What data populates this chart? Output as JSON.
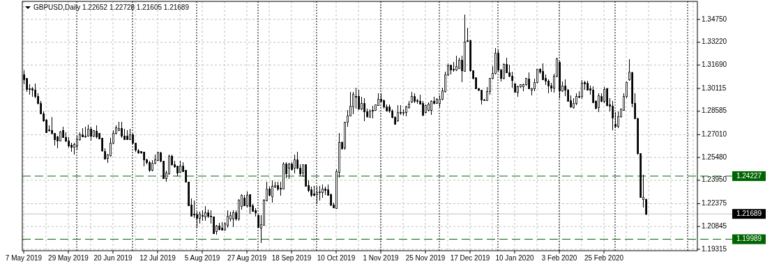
{
  "chart_data": {
    "type": "candlestick",
    "title": "GBPUSD,Daily  1.22652 1.22728 1.21605 1.21689",
    "color": "#000000",
    "grid": true,
    "categories": [
      "7 May 2019",
      null,
      null,
      null,
      null,
      null,
      null,
      null,
      null,
      null,
      null,
      null,
      null,
      null,
      null,
      null,
      "29 May 2019",
      null,
      null,
      null,
      null,
      null,
      null,
      null,
      null,
      null,
      null,
      null,
      null,
      null,
      null,
      null,
      "20 Jun 2019",
      null,
      null,
      null,
      null,
      null,
      null,
      null,
      null,
      null,
      null,
      null,
      null,
      null,
      null,
      null,
      "12 Jul 2019",
      null,
      null,
      null,
      null,
      null,
      null,
      null,
      null,
      null,
      null,
      null,
      null,
      null,
      null,
      null,
      "5 Aug 2019",
      null,
      null,
      null,
      null,
      null,
      null,
      null,
      null,
      null,
      null,
      null,
      null,
      null,
      null,
      null,
      "27 Aug 2019",
      null,
      null,
      null,
      null,
      null,
      null,
      null,
      null,
      null,
      null,
      null,
      null,
      null,
      null,
      null,
      "18 Sep 2019",
      null,
      null,
      null,
      null,
      null,
      null,
      null,
      null,
      null,
      null,
      null,
      null,
      null,
      null,
      null,
      "10 Oct 2019",
      null,
      null,
      null,
      null,
      null,
      null,
      null,
      null,
      null,
      null,
      null,
      null,
      null,
      null,
      null,
      "1 Nov 2019",
      null,
      null,
      null,
      null,
      null,
      null,
      null,
      null,
      null,
      null,
      null,
      null,
      null,
      null,
      null,
      "25 Nov 2019",
      null,
      null,
      null,
      null,
      null,
      null,
      null,
      null,
      null,
      null,
      null,
      null,
      null,
      null,
      null,
      "17 Dec 2019",
      null,
      null,
      null,
      null,
      null,
      null,
      null,
      null,
      null,
      null,
      null,
      null,
      null,
      null,
      null,
      "10 Jan 2020",
      null,
      null,
      null,
      null,
      null,
      null,
      null,
      null,
      null,
      null,
      null,
      null,
      null,
      null,
      null,
      "3 Feb 2020",
      null,
      null,
      null,
      null,
      null,
      null,
      null,
      null,
      null,
      null,
      null,
      null,
      null,
      null,
      null,
      "25 Feb 2020",
      null,
      null,
      null,
      null,
      null,
      null,
      null,
      null,
      null,
      null,
      null,
      null,
      null,
      null,
      null,
      null,
      null,
      null,
      null,
      null,
      null,
      null,
      null,
      null,
      null,
      null,
      null,
      null,
      null,
      null,
      null,
      null,
      null
    ],
    "ohlc": [
      [
        1.3103,
        1.3134,
        1.3041,
        1.3072
      ],
      [
        1.3079,
        1.3083,
        1.299,
        1.3005
      ],
      [
        1.301,
        1.3041,
        1.2971,
        1.3007
      ],
      [
        1.3008,
        1.3021,
        1.2956,
        1.3002
      ],
      [
        1.3002,
        1.3045,
        1.2948,
        1.2959
      ],
      [
        1.2959,
        1.2979,
        1.2902,
        1.2909
      ],
      [
        1.2909,
        1.2925,
        1.284,
        1.2843
      ],
      [
        1.2843,
        1.2855,
        1.2789,
        1.2793
      ],
      [
        1.2801,
        1.2804,
        1.2713,
        1.2716
      ],
      [
        1.2732,
        1.2763,
        1.2721,
        1.2729
      ],
      [
        1.2729,
        1.282,
        1.2705,
        1.2708
      ],
      [
        1.2708,
        1.271,
        1.2628,
        1.2667
      ],
      [
        1.2685,
        1.2693,
        1.2608,
        1.2659
      ],
      [
        1.2659,
        1.2727,
        1.2654,
        1.2721
      ],
      [
        1.2729,
        1.2752,
        1.2678,
        1.2682
      ],
      [
        1.2682,
        1.2716,
        1.265,
        1.2659
      ],
      [
        1.2659,
        1.2685,
        1.2616,
        1.2628
      ],
      [
        1.2631,
        1.2647,
        1.2585,
        1.2616
      ],
      [
        1.2616,
        1.2647,
        1.2565,
        1.2636
      ],
      [
        1.2628,
        1.2693,
        1.26,
        1.2668
      ],
      [
        1.2667,
        1.2716,
        1.2662,
        1.2699
      ],
      [
        1.2699,
        1.2747,
        1.2682,
        1.2685
      ],
      [
        1.2689,
        1.2755,
        1.2681,
        1.269
      ],
      [
        1.2693,
        1.277,
        1.2689,
        1.2739
      ],
      [
        1.2739,
        1.2752,
        1.2659,
        1.269
      ],
      [
        1.269,
        1.2732,
        1.2685,
        1.2727
      ],
      [
        1.2724,
        1.2763,
        1.2673,
        1.2685
      ],
      [
        1.2712,
        1.2714,
        1.267,
        1.2674
      ],
      [
        1.2678,
        1.2681,
        1.2585,
        1.2593
      ],
      [
        1.2588,
        1.2608,
        1.2535,
        1.2538
      ],
      [
        1.2542,
        1.2572,
        1.2512,
        1.2566
      ],
      [
        1.256,
        1.2681,
        1.2554,
        1.2644
      ],
      [
        1.2644,
        1.2732,
        1.2639,
        1.2708
      ],
      [
        1.2708,
        1.2763,
        1.2701,
        1.2747
      ],
      [
        1.273,
        1.2786,
        1.2724,
        1.2743
      ],
      [
        1.2743,
        1.2789,
        1.2678,
        1.2693
      ],
      [
        1.2693,
        1.2739,
        1.2667,
        1.267
      ],
      [
        1.269,
        1.2732,
        1.2667,
        1.267
      ],
      [
        1.267,
        1.2739,
        1.2665,
        1.2701
      ],
      [
        1.2701,
        1.2708,
        1.2639,
        1.2644
      ],
      [
        1.2644,
        1.2647,
        1.2585,
        1.2596
      ],
      [
        1.2593,
        1.2603,
        1.2572,
        1.2577
      ],
      [
        1.2588,
        1.2593,
        1.2572,
        1.2577
      ],
      [
        1.2585,
        1.2588,
        1.2489,
        1.2531
      ],
      [
        1.2531,
        1.2538,
        1.2504,
        1.2515
      ],
      [
        1.2515,
        1.2523,
        1.2449,
        1.2461
      ],
      [
        1.2464,
        1.2531,
        1.2453,
        1.2511
      ],
      [
        1.2508,
        1.2569,
        1.2504,
        1.2531
      ],
      [
        1.2526,
        1.2588,
        1.2523,
        1.2585
      ],
      [
        1.2577,
        1.2585,
        1.2515,
        1.2523
      ],
      [
        1.2523,
        1.2526,
        1.2402,
        1.2407
      ],
      [
        1.2407,
        1.2461,
        1.2387,
        1.2443
      ],
      [
        1.2438,
        1.2566,
        1.2433,
        1.2557
      ],
      [
        1.2557,
        1.2566,
        1.2492,
        1.25
      ],
      [
        1.25,
        1.2523,
        1.2477,
        1.2484
      ],
      [
        1.2489,
        1.2492,
        1.2423,
        1.2443
      ],
      [
        1.2449,
        1.2526,
        1.2446,
        1.2489
      ],
      [
        1.2489,
        1.2515,
        1.2449,
        1.2453
      ],
      [
        1.2461,
        1.2464,
        1.2381,
        1.2384
      ],
      [
        1.2384,
        1.2387,
        1.2222,
        1.2225
      ],
      [
        1.2229,
        1.2273,
        1.2152,
        1.2155
      ],
      [
        1.2168,
        1.226,
        1.214,
        1.2161
      ],
      [
        1.2164,
        1.2186,
        1.2078,
        1.214
      ],
      [
        1.214,
        1.2183,
        1.2103,
        1.2168
      ],
      [
        1.2158,
        1.2191,
        1.2121,
        1.2152
      ],
      [
        1.2149,
        1.2222,
        1.2121,
        1.2175
      ],
      [
        1.2175,
        1.2198,
        1.2144,
        1.2152
      ],
      [
        1.2155,
        1.2191,
        1.2106,
        1.2149
      ],
      [
        1.2149,
        1.2152,
        1.2033,
        1.2036
      ],
      [
        1.2052,
        1.2093,
        1.2028,
        1.2087
      ],
      [
        1.2087,
        1.2109,
        1.2059,
        1.2064
      ],
      [
        1.2072,
        1.2113,
        1.2059,
        1.2062
      ],
      [
        1.2062,
        1.2113,
        1.2059,
        1.2103
      ],
      [
        1.2093,
        1.2191,
        1.2075,
        1.2152
      ],
      [
        1.2136,
        1.2186,
        1.2118,
        1.216
      ],
      [
        1.2136,
        1.2191,
        1.2082,
        1.2175
      ],
      [
        1.2175,
        1.2191,
        1.2124,
        1.2136
      ],
      [
        1.2133,
        1.2268,
        1.2121,
        1.2263
      ],
      [
        1.2217,
        1.2299,
        1.2198,
        1.2294
      ],
      [
        1.2276,
        1.2294,
        1.2222,
        1.2225
      ],
      [
        1.2225,
        1.2319,
        1.2214,
        1.2294
      ],
      [
        1.2299,
        1.2302,
        1.2168,
        1.2217
      ],
      [
        1.2222,
        1.2237,
        1.2183,
        1.2186
      ],
      [
        1.2191,
        1.2206,
        1.2152,
        1.2175
      ],
      [
        1.216,
        1.2164,
        1.2075,
        1.2078
      ],
      [
        1.2075,
        1.216,
        1.1974,
        1.2098
      ],
      [
        1.2093,
        1.2268,
        1.209,
        1.226
      ],
      [
        1.2257,
        1.2384,
        1.2252,
        1.2337
      ],
      [
        1.2337,
        1.2353,
        1.2288,
        1.2294
      ],
      [
        1.2283,
        1.2392,
        1.2245,
        1.2353
      ],
      [
        1.235,
        1.2387,
        1.2345,
        1.2361
      ],
      [
        1.2361,
        1.2384,
        1.2322,
        1.2337
      ],
      [
        1.2341,
        1.2384,
        1.2291,
        1.2334
      ],
      [
        1.2337,
        1.2515,
        1.2334,
        1.2504
      ],
      [
        1.2504,
        1.2515,
        1.2407,
        1.2438
      ],
      [
        1.2477,
        1.2511,
        1.2402,
        1.2504
      ],
      [
        1.2504,
        1.2515,
        1.2461,
        1.2469
      ],
      [
        1.2474,
        1.2566,
        1.2443,
        1.2531
      ],
      [
        1.2531,
        1.2588,
        1.2469,
        1.2477
      ],
      [
        1.2474,
        1.25,
        1.2423,
        1.2438
      ],
      [
        1.2443,
        1.2504,
        1.2418,
        1.25
      ],
      [
        1.25,
        1.2504,
        1.2353,
        1.2356
      ],
      [
        1.2361,
        1.2392,
        1.2314,
        1.2325
      ],
      [
        1.233,
        1.235,
        1.2283,
        1.2294
      ],
      [
        1.2304,
        1.2356,
        1.2288,
        1.2294
      ],
      [
        1.2299,
        1.235,
        1.2237,
        1.2314
      ],
      [
        1.2316,
        1.2356,
        1.226,
        1.2319
      ],
      [
        1.2314,
        1.2368,
        1.2276,
        1.2334
      ],
      [
        1.2337,
        1.2353,
        1.2294,
        1.2328
      ],
      [
        1.233,
        1.2368,
        1.2291,
        1.2294
      ],
      [
        1.2299,
        1.2307,
        1.2222,
        1.2226
      ],
      [
        1.2229,
        1.2245,
        1.2206,
        1.2211
      ],
      [
        1.2206,
        1.2469,
        1.2202,
        1.2453
      ],
      [
        1.2449,
        1.2712,
        1.2415,
        1.2647
      ],
      [
        1.2647,
        1.2654,
        1.26,
        1.2608
      ],
      [
        1.2613,
        1.2789,
        1.26,
        1.2783
      ],
      [
        1.2783,
        1.2866,
        1.2752,
        1.2829
      ],
      [
        1.2829,
        1.299,
        1.2824,
        1.2891
      ],
      [
        1.2886,
        1.299,
        1.284,
        1.2971
      ],
      [
        1.2959,
        1.3014,
        1.2875,
        1.2951
      ],
      [
        1.2959,
        1.3002,
        1.2866,
        1.2875
      ],
      [
        1.2875,
        1.2956,
        1.2866,
        1.2909
      ],
      [
        1.2909,
        1.2948,
        1.2793,
        1.2855
      ],
      [
        1.2855,
        1.2875,
        1.2817,
        1.2824
      ],
      [
        1.2817,
        1.2871,
        1.2814,
        1.286
      ],
      [
        1.2866,
        1.2894,
        1.2809,
        1.286
      ],
      [
        1.2866,
        1.2906,
        1.286,
        1.2902
      ],
      [
        1.2897,
        1.2979,
        1.2894,
        1.294
      ],
      [
        1.2937,
        1.2979,
        1.2917,
        1.2925
      ],
      [
        1.2929,
        1.2937,
        1.2878,
        1.2886
      ],
      [
        1.2886,
        1.2902,
        1.2855,
        1.286
      ],
      [
        1.2886,
        1.2902,
        1.2848,
        1.286
      ],
      [
        1.286,
        1.2871,
        1.2809,
        1.2817
      ],
      [
        1.2817,
        1.2824,
        1.277,
        1.2773
      ],
      [
        1.2793,
        1.2897,
        1.2786,
        1.2851
      ],
      [
        1.2852,
        1.2897,
        1.2832,
        1.2849
      ],
      [
        1.2851,
        1.2871,
        1.2829,
        1.2852
      ],
      [
        1.2851,
        1.2894,
        1.2824,
        1.2886
      ],
      [
        1.2882,
        1.2925,
        1.2878,
        1.2906
      ],
      [
        1.2922,
        1.2987,
        1.2912,
        1.2956
      ],
      [
        1.2956,
        1.2979,
        1.2912,
        1.2925
      ],
      [
        1.2929,
        1.2943,
        1.2909,
        1.2926
      ],
      [
        1.2925,
        1.2971,
        1.2902,
        1.2906
      ],
      [
        1.2909,
        1.2925,
        1.2824,
        1.2832
      ],
      [
        1.2851,
        1.2906,
        1.2844,
        1.2897
      ],
      [
        1.2866,
        1.2917,
        1.2855,
        1.2906
      ],
      [
        1.2866,
        1.2933,
        1.2832,
        1.2925
      ],
      [
        1.2925,
        1.2956,
        1.2906,
        1.2912
      ],
      [
        1.2912,
        1.2948,
        1.2909,
        1.2937
      ],
      [
        1.2912,
        1.2963,
        1.2886,
        1.294
      ],
      [
        1.2937,
        1.3018,
        1.2933,
        1.2994
      ],
      [
        1.299,
        1.3126,
        1.2984,
        1.3103
      ],
      [
        1.3103,
        1.3178,
        1.3098,
        1.3163
      ],
      [
        1.3166,
        1.3171,
        1.3103,
        1.3134
      ],
      [
        1.314,
        1.3191,
        1.3126,
        1.3137
      ],
      [
        1.3134,
        1.3232,
        1.313,
        1.316
      ],
      [
        1.3144,
        1.3217,
        1.3141,
        1.3202
      ],
      [
        1.3202,
        1.3232,
        1.3052,
        1.3129
      ],
      [
        1.3126,
        1.3509,
        1.3123,
        1.3324
      ],
      [
        1.3331,
        1.3419,
        1.3324,
        1.3328
      ],
      [
        1.3334,
        1.3339,
        1.3126,
        1.3129
      ],
      [
        1.3129,
        1.3134,
        1.3072,
        1.3079
      ],
      [
        1.3083,
        1.3085,
        1.3005,
        1.301
      ],
      [
        1.301,
        1.3018,
        1.2994,
        1.2999
      ],
      [
        1.2999,
        1.3002,
        1.2906,
        1.2933
      ],
      [
        1.2933,
        1.2943,
        1.2925,
        1.2934
      ],
      [
        1.2928,
        1.3021,
        1.2925,
        1.299
      ],
      [
        1.299,
        1.3082,
        1.2971,
        1.3079
      ],
      [
        1.3079,
        1.3163,
        1.3072,
        1.3113
      ],
      [
        1.311,
        1.3283,
        1.3107,
        1.3246
      ],
      [
        1.3246,
        1.3268,
        1.3126,
        1.3134
      ],
      [
        1.3134,
        1.3141,
        1.3056,
        1.3079
      ],
      [
        1.3079,
        1.3178,
        1.3072,
        1.3171
      ],
      [
        1.3171,
        1.3217,
        1.3113,
        1.3118
      ],
      [
        1.3118,
        1.3171,
        1.3087,
        1.3095
      ],
      [
        1.3095,
        1.3123,
        1.3014,
        1.3064
      ],
      [
        1.3041,
        1.3049,
        1.2984,
        1.2987
      ],
      [
        1.2987,
        1.303,
        1.2956,
        1.3021
      ],
      [
        1.3021,
        1.3041,
        1.3018,
        1.3036
      ],
      [
        1.3021,
        1.3045,
        1.2994,
        1.3036
      ],
      [
        1.3036,
        1.3083,
        1.303,
        1.3079
      ],
      [
        1.3076,
        1.3118,
        1.3005,
        1.301
      ],
      [
        1.3002,
        1.3018,
        1.2963,
        1.3011
      ],
      [
        1.301,
        1.3079,
        1.2994,
        1.3049
      ],
      [
        1.3049,
        1.3144,
        1.3045,
        1.3141
      ],
      [
        1.3141,
        1.3149,
        1.311,
        1.3123
      ],
      [
        1.3126,
        1.3178,
        1.3067,
        1.3072
      ],
      [
        1.3079,
        1.3103,
        1.3033,
        1.3061
      ],
      [
        1.3061,
        1.3072,
        1.2979,
        1.303
      ],
      [
        1.303,
        1.3049,
        1.299,
        1.3014
      ],
      [
        1.3014,
        1.311,
        1.2984,
        1.3092
      ],
      [
        1.3092,
        1.3217,
        1.3087,
        1.3212
      ],
      [
        1.3186,
        1.3194,
        1.2948,
        1.2994
      ],
      [
        1.2994,
        1.3056,
        1.2987,
        1.303
      ],
      [
        1.303,
        1.3072,
        1.2959,
        1.3002
      ],
      [
        1.3002,
        1.3005,
        1.2922,
        1.2925
      ],
      [
        1.2928,
        1.2963,
        1.2882,
        1.2886
      ],
      [
        1.2882,
        1.2948,
        1.2875,
        1.2912
      ],
      [
        1.2912,
        1.2979,
        1.2897,
        1.2956
      ],
      [
        1.2959,
        1.2994,
        1.2948,
        1.2953
      ],
      [
        1.2956,
        1.3067,
        1.2943,
        1.3045
      ],
      [
        1.3049,
        1.3064,
        1.3002,
        1.3041
      ],
      [
        1.3045,
        1.3064,
        1.2999,
        1.3002
      ],
      [
        1.301,
        1.303,
        1.2971,
        1.3002
      ],
      [
        1.3002,
        1.3025,
        1.2912,
        1.2917
      ],
      [
        1.2925,
        1.2933,
        1.2871,
        1.2878
      ],
      [
        1.2882,
        1.2979,
        1.2851,
        1.2963
      ],
      [
        1.2956,
        1.2979,
        1.2917,
        1.2925
      ],
      [
        1.2925,
        1.3021,
        1.2912,
        1.3005
      ],
      [
        1.301,
        1.3014,
        1.2891,
        1.2897
      ],
      [
        1.2902,
        1.2948,
        1.2855,
        1.2891
      ],
      [
        1.2891,
        1.2925,
        1.2732,
        1.2814
      ],
      [
        1.2773,
        1.2851,
        1.2747,
        1.2755
      ],
      [
        1.2755,
        1.2855,
        1.2747,
        1.282
      ],
      [
        1.282,
        1.2878,
        1.2814,
        1.2875
      ],
      [
        1.2866,
        1.2979,
        1.286,
        1.2956
      ],
      [
        1.2956,
        1.3056,
        1.2948,
        1.3052
      ],
      [
        1.307,
        1.3206,
        1.3064,
        1.3123
      ],
      [
        1.3118,
        1.3123,
        1.2886,
        1.2909
      ],
      [
        1.2912,
        1.2979,
        1.2804,
        1.2809
      ],
      [
        1.2809,
        1.2814,
        1.2569,
        1.2572
      ],
      [
        1.2572,
        1.2575,
        1.2276,
        1.2279
      ],
      [
        1.2268,
        1.243,
        1.2214,
        1.2279
      ],
      [
        1.22652,
        1.22728,
        1.21605,
        1.21689
      ],
      null,
      null,
      null,
      null,
      null,
      null,
      null,
      null,
      null,
      null,
      null,
      null,
      null,
      null,
      null,
      null,
      null,
      null
    ],
    "ylim": [
      1.1922,
      1.3596
    ],
    "yticks": [
      {
        "value": 1.3475,
        "label": "1.34750"
      },
      {
        "value": 1.3322,
        "label": "1.33220"
      },
      {
        "value": 1.3169,
        "label": "1.31690"
      },
      {
        "value": 1.30115,
        "label": "1.30115"
      },
      {
        "value": 1.28585,
        "label": "1.28585"
      },
      {
        "value": 1.2701,
        "label": "1.27010"
      },
      {
        "value": 1.2548,
        "label": "1.25480"
      },
      {
        "value": 1.2395,
        "label": "1.23950"
      },
      {
        "value": 1.22375,
        "label": "1.22375"
      },
      {
        "value": 1.20845,
        "label": "1.20845"
      },
      {
        "value": 1.19315,
        "label": "1.19315"
      }
    ],
    "ref_lines": [
      {
        "axis": "y",
        "value": 1.24227,
        "label": "1.24227",
        "color": "#006400",
        "line_style": "dashed"
      },
      {
        "axis": "y",
        "value": 1.19989,
        "label": "1.19989",
        "color": "#006400",
        "line_style": "dashed"
      },
      {
        "axis": "y",
        "value": 1.21689,
        "label": "1.21689",
        "color": "#c0c0c0",
        "line_style": "solid"
      }
    ]
  }
}
